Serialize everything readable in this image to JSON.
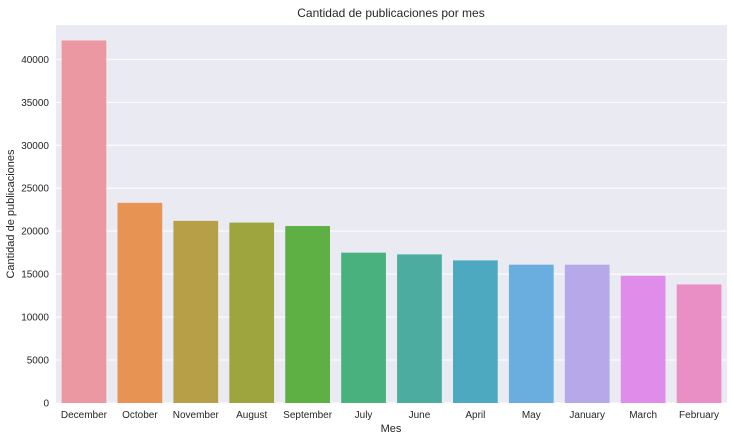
{
  "chart_data": {
    "type": "bar",
    "title": "Cantidad de publicaciones por mes",
    "xlabel": "Mes",
    "ylabel": "Cantidad de publicaciones",
    "categories": [
      "December",
      "October",
      "November",
      "August",
      "September",
      "July",
      "June",
      "April",
      "May",
      "January",
      "March",
      "February"
    ],
    "values": [
      42200,
      23300,
      21200,
      21000,
      20600,
      17500,
      17300,
      16600,
      16100,
      16100,
      14800,
      13800
    ],
    "colors": [
      "#ec98a3",
      "#e69353",
      "#b79f47",
      "#9ea53f",
      "#5eaf44",
      "#49b17e",
      "#4bac9f",
      "#4ca9c0",
      "#6aaee0",
      "#b7a8ea",
      "#e08ceb",
      "#ea8fc6"
    ],
    "ylim": [
      0,
      44000
    ],
    "yticks": [
      0,
      5000,
      10000,
      15000,
      20000,
      25000,
      30000,
      35000,
      40000
    ],
    "ytick_labels": [
      "0",
      "5000",
      "10000",
      "15000",
      "20000",
      "25000",
      "30000",
      "35000",
      "40000"
    ],
    "grid": true,
    "background": "#eaeaf2"
  }
}
